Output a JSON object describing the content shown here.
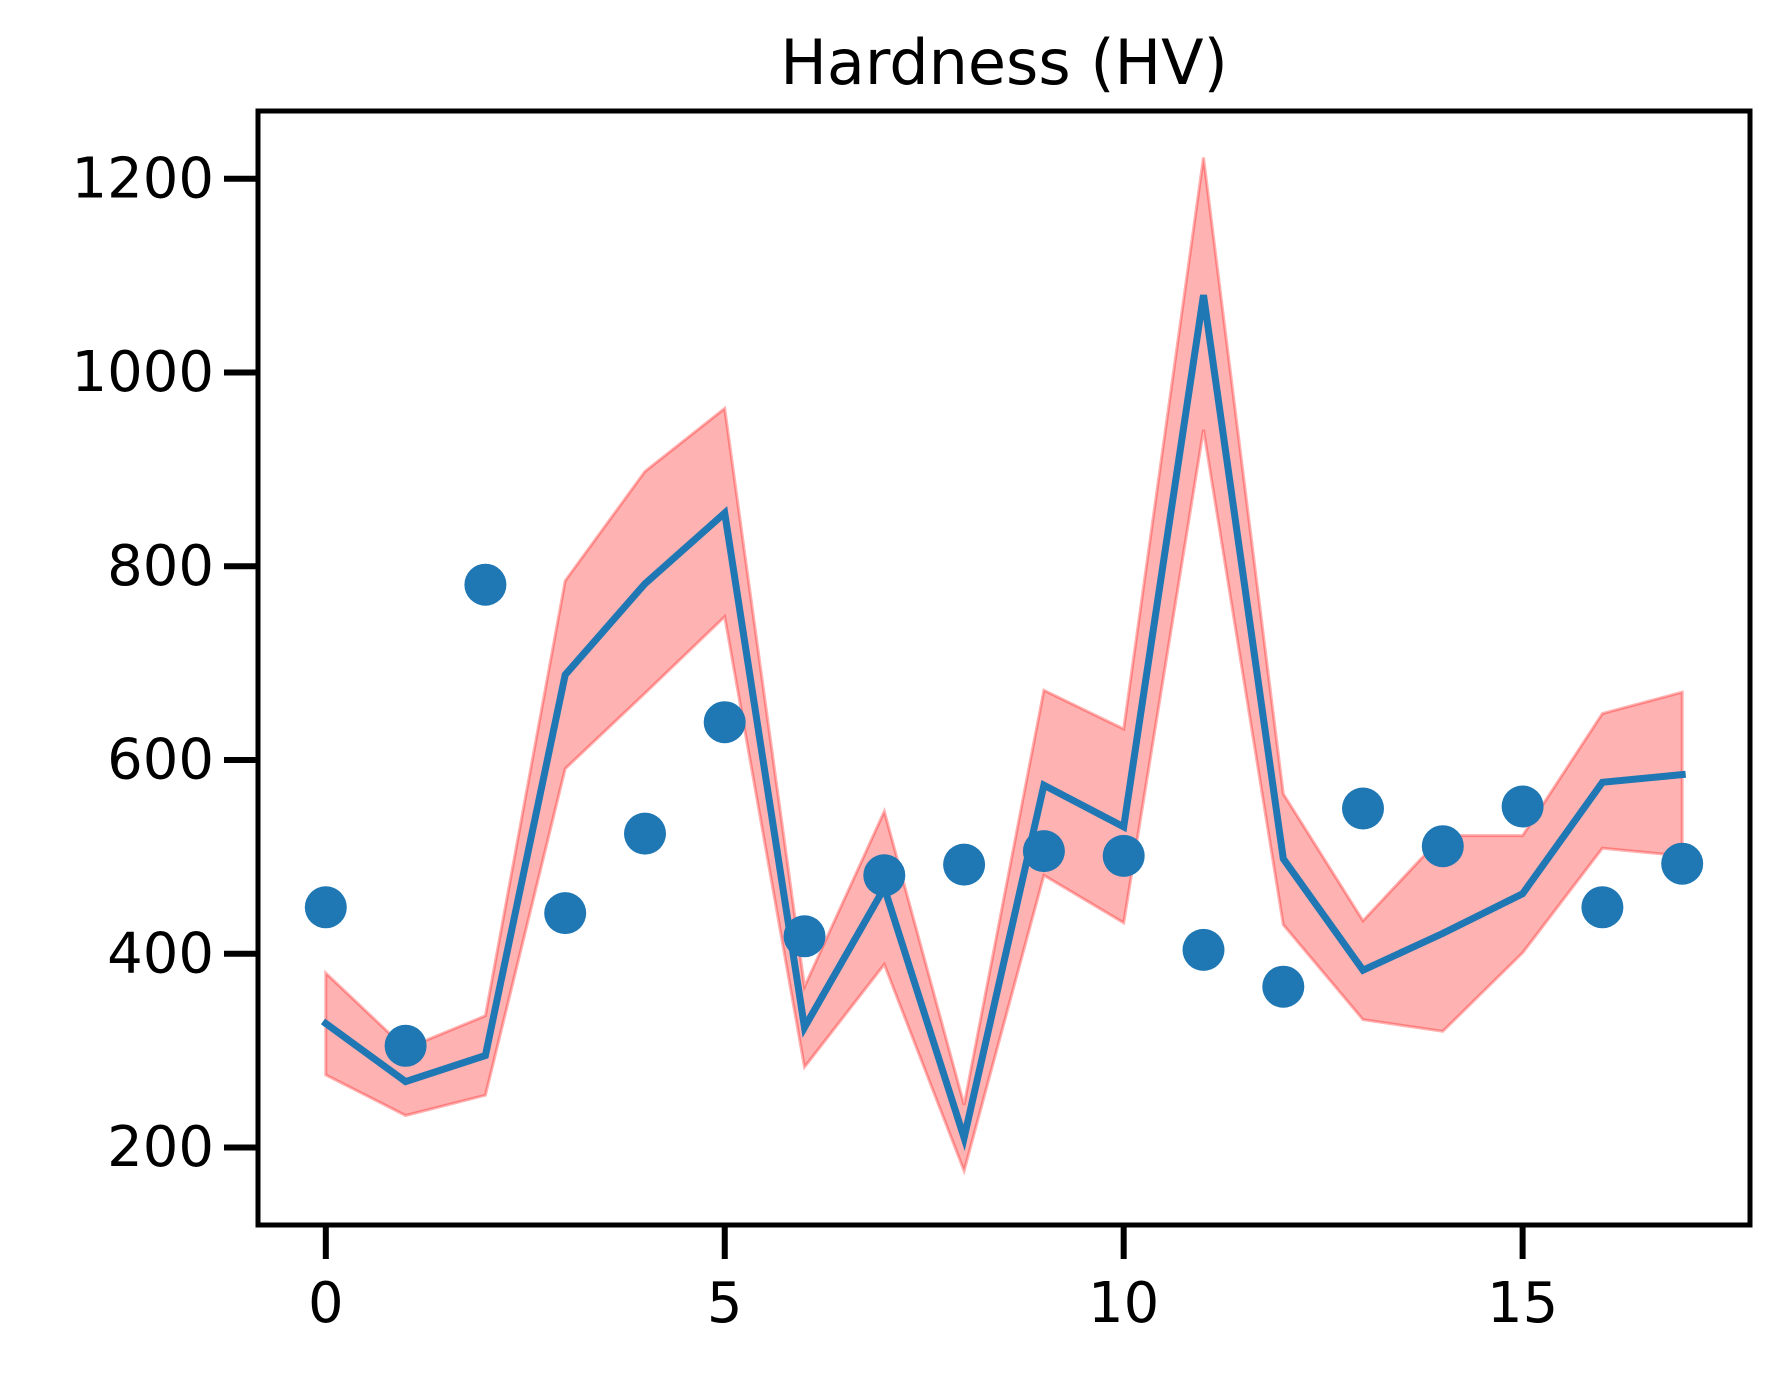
{
  "chart_data": {
    "type": "line",
    "title": "Hardness (HV)",
    "xlabel": "",
    "ylabel": "",
    "xlim": [
      -0.85,
      17.85
    ],
    "ylim": [
      120,
      1270
    ],
    "x_ticks": [
      0,
      5,
      10,
      15
    ],
    "x_tick_labels": [
      "0",
      "5",
      "10",
      "15"
    ],
    "y_ticks": [
      200,
      400,
      600,
      800,
      1000,
      1200
    ],
    "y_tick_labels": [
      "200",
      "400",
      "600",
      "800",
      "1000",
      "1200"
    ],
    "grid": false,
    "legend": null,
    "x": [
      0,
      1,
      2,
      3,
      4,
      5,
      6,
      7,
      8,
      9,
      10,
      11,
      12,
      13,
      14,
      15,
      16,
      17
    ],
    "series": [
      {
        "kind": "scatter",
        "color": "#1f77b4",
        "values": [
          448,
          305,
          781,
          442,
          524,
          639,
          418,
          481,
          492,
          506,
          501,
          404,
          366,
          550,
          511,
          552,
          448,
          493
        ]
      },
      {
        "kind": "line",
        "color": "#1f77b4",
        "values": [
          328,
          268,
          295,
          688,
          782,
          855,
          324,
          468,
          210,
          574,
          531,
          1080,
          498,
          383,
          421,
          462,
          577,
          585
        ]
      },
      {
        "kind": "band",
        "color": "#ff0000",
        "fill_opacity": 0.3,
        "lower": [
          275,
          233,
          254,
          591,
          669,
          748,
          283,
          389,
          176,
          481,
          432,
          941,
          430,
          332,
          320,
          401,
          509,
          501
        ],
        "upper": [
          380,
          302,
          336,
          785,
          898,
          963,
          366,
          547,
          244,
          672,
          632,
          1222,
          565,
          434,
          522,
          522,
          648,
          670
        ]
      }
    ]
  }
}
